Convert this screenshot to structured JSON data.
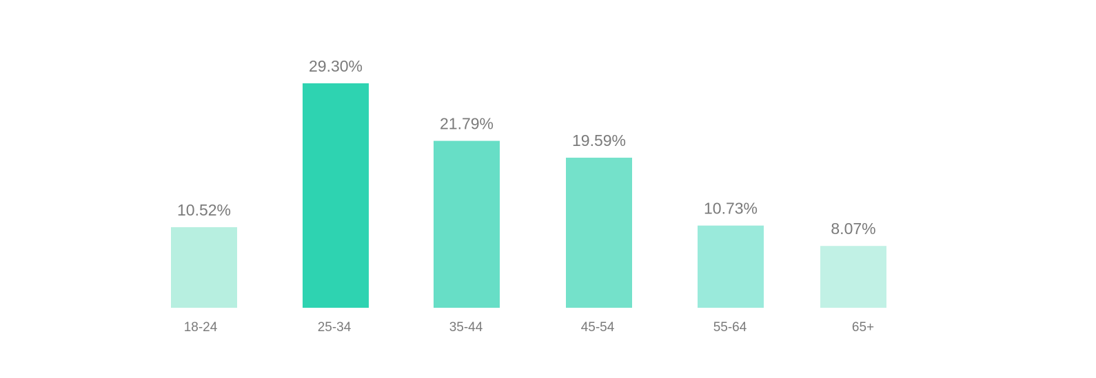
{
  "chart_data": {
    "type": "bar",
    "categories": [
      "18-24",
      "25-34",
      "35-44",
      "45-54",
      "55-64",
      "65+"
    ],
    "values": [
      10.52,
      29.3,
      21.79,
      19.59,
      10.73,
      8.07
    ],
    "value_labels": [
      "10.52%",
      "29.30%",
      "21.79%",
      "19.59%",
      "10.73%",
      "8.07%"
    ],
    "colors": [
      "#b7efe0",
      "#2ed3b1",
      "#67dec6",
      "#74e1ca",
      "#9aeadb",
      "#c1f1e5"
    ],
    "grid": false,
    "legend": "none",
    "xlabel": "",
    "ylabel": "",
    "ylim": [
      0,
      29.3
    ]
  }
}
